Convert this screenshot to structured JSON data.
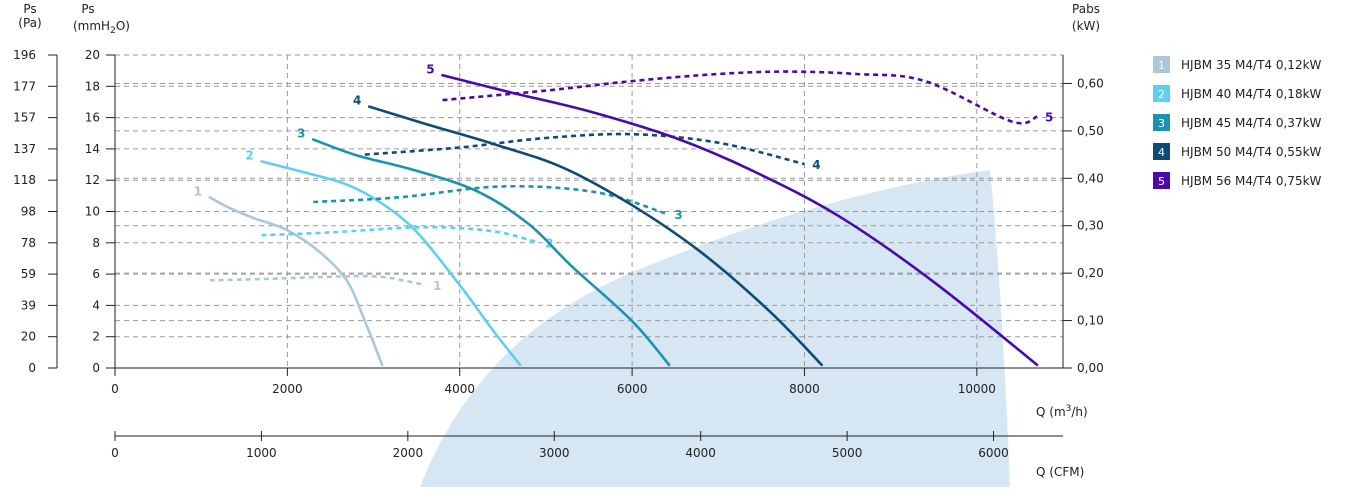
{
  "colors": {
    "grid": "#9a9a9a",
    "axis": "#222222",
    "watermark": "#cfe3f1",
    "series": [
      "#a9c9db",
      "#5cd0ee",
      "#1b93ae",
      "#0f4c75",
      "#4b0aa8"
    ]
  },
  "axis_titles": {
    "ps_pa": [
      "Ps",
      "(Pa)"
    ],
    "ps_mm": [
      "Ps",
      "(mmH",
      "2",
      "O)"
    ],
    "pabs": [
      "Pabs",
      "(kW)"
    ],
    "q_m3h": [
      "Q (m",
      "3",
      "/h)"
    ],
    "q_cfm": "Q (CFM)"
  },
  "chart_data": {
    "type": "line",
    "x_m3h_ticks": [
      0,
      2000,
      4000,
      6000,
      8000,
      10000
    ],
    "x_cfm_ticks": [
      0,
      1000,
      2000,
      3000,
      4000,
      5000,
      6000
    ],
    "y_mm_ticks": [
      0,
      2,
      4,
      6,
      8,
      10,
      12,
      14,
      16,
      18,
      20
    ],
    "y_pa_ticks": [
      0,
      20,
      39,
      59,
      78,
      98,
      118,
      137,
      157,
      177,
      196
    ],
    "y_kw_ticks": [
      "0,00",
      "0,10",
      "0,20",
      "0,30",
      "0,40",
      "0,50",
      "0,60"
    ],
    "xlim_m3h": [
      0,
      11000
    ],
    "ylim_mmH2O": [
      0,
      20
    ],
    "ylim_kW": [
      0,
      0.66
    ],
    "grid": true,
    "legend_position": "right",
    "series": [
      {
        "name": "HJBM 35 M4/T4 0,12kW",
        "label": "1",
        "pressure_mmH2O": [
          [
            1100,
            10.9
          ],
          [
            1300,
            10.3
          ],
          [
            1600,
            9.6
          ],
          [
            2000,
            8.8
          ],
          [
            2400,
            7.3
          ],
          [
            2700,
            5.5
          ],
          [
            2900,
            3.0
          ],
          [
            3050,
            0.9
          ],
          [
            3100,
            0.2
          ]
        ],
        "power_kW": [
          [
            1100,
            0.185
          ],
          [
            1800,
            0.188
          ],
          [
            2600,
            0.193
          ],
          [
            3100,
            0.192
          ],
          [
            3600,
            0.175
          ]
        ]
      },
      {
        "name": "HJBM 40 M4/T4 0,18kW",
        "label": "2",
        "pressure_mmH2O": [
          [
            1700,
            13.2
          ],
          [
            2200,
            12.5
          ],
          [
            2700,
            11.7
          ],
          [
            3100,
            10.5
          ],
          [
            3500,
            8.7
          ],
          [
            4000,
            5.3
          ],
          [
            4400,
            2.3
          ],
          [
            4700,
            0.2
          ]
        ],
        "power_kW": [
          [
            1700,
            0.28
          ],
          [
            2500,
            0.286
          ],
          [
            3600,
            0.297
          ],
          [
            4400,
            0.288
          ],
          [
            4900,
            0.265
          ]
        ]
      },
      {
        "name": "HJBM 45 M4/T4 0,37kW",
        "label": "3",
        "pressure_mmH2O": [
          [
            2300,
            14.6
          ],
          [
            2800,
            13.6
          ],
          [
            3500,
            12.6
          ],
          [
            4200,
            11.3
          ],
          [
            4800,
            9.2
          ],
          [
            5300,
            6.5
          ],
          [
            6000,
            3.0
          ],
          [
            6430,
            0.2
          ]
        ],
        "power_kW": [
          [
            2300,
            0.35
          ],
          [
            3300,
            0.36
          ],
          [
            4500,
            0.383
          ],
          [
            5600,
            0.37
          ],
          [
            6400,
            0.325
          ]
        ]
      },
      {
        "name": "HJBM 50 M4/T4 0,55kW",
        "label": "4",
        "pressure_mmH2O": [
          [
            2950,
            16.7
          ],
          [
            3600,
            15.6
          ],
          [
            4400,
            14.3
          ],
          [
            5200,
            12.8
          ],
          [
            6000,
            10.4
          ],
          [
            6800,
            7.4
          ],
          [
            7600,
            3.6
          ],
          [
            8200,
            0.2
          ]
        ],
        "power_kW": [
          [
            2900,
            0.45
          ],
          [
            4000,
            0.465
          ],
          [
            5000,
            0.485
          ],
          [
            6000,
            0.493
          ],
          [
            7000,
            0.475
          ],
          [
            8000,
            0.43
          ]
        ]
      },
      {
        "name": "HJBM 56 M4/T4 0,75kW",
        "label": "5",
        "pressure_mmH2O": [
          [
            3800,
            18.7
          ],
          [
            4600,
            17.6
          ],
          [
            5500,
            16.4
          ],
          [
            6500,
            14.7
          ],
          [
            7400,
            12.6
          ],
          [
            8400,
            9.7
          ],
          [
            9500,
            5.5
          ],
          [
            10700,
            0.2
          ]
        ],
        "power_kW": [
          [
            3800,
            0.565
          ],
          [
            5000,
            0.585
          ],
          [
            6000,
            0.605
          ],
          [
            7000,
            0.62
          ],
          [
            7800,
            0.625
          ],
          [
            8600,
            0.62
          ],
          [
            9400,
            0.605
          ],
          [
            10400,
            0.52
          ],
          [
            10700,
            0.53
          ]
        ]
      }
    ]
  }
}
